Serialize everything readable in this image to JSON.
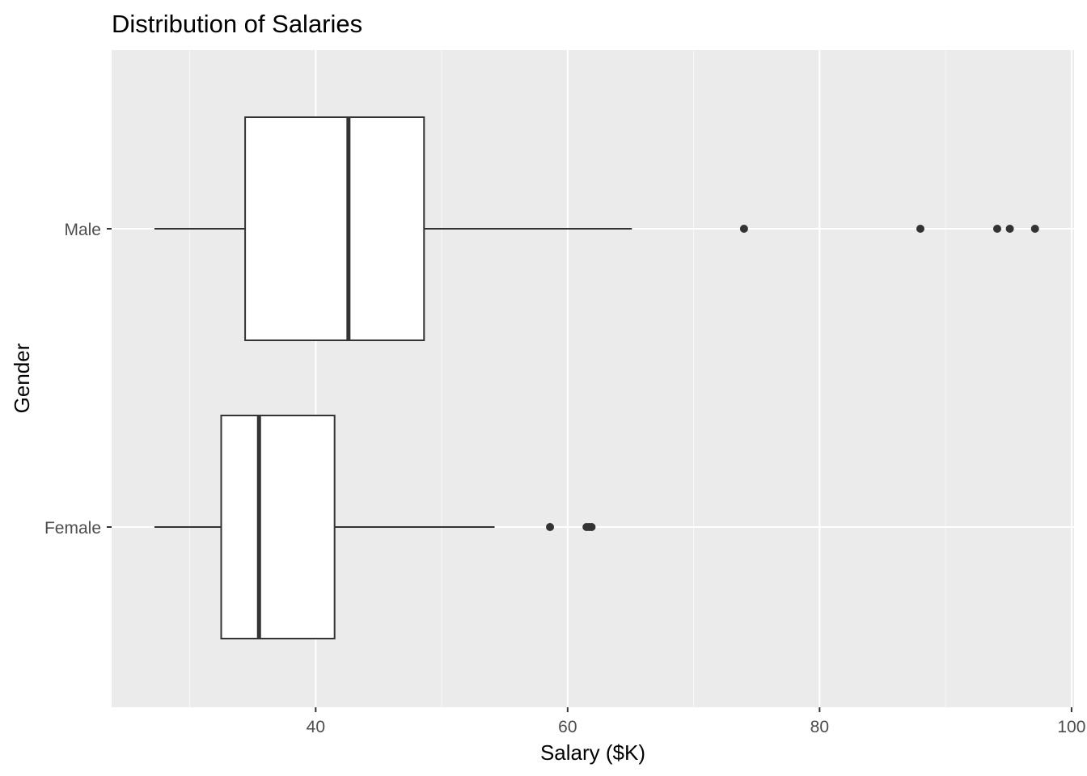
{
  "chart_data": {
    "type": "boxplot",
    "orientation": "horizontal",
    "title": "Distribution of Salaries",
    "xlabel": "Salary ($K)",
    "ylabel": "Gender",
    "xlim": [
      23.8,
      100.2
    ],
    "x_major_ticks": [
      40,
      60,
      80,
      100
    ],
    "x_minor_ticks": [
      30,
      50,
      70,
      90
    ],
    "categories": [
      "Male",
      "Female"
    ],
    "grid": true,
    "legend": "none",
    "colors": {
      "panel_background": "#ebebeb",
      "grid_major": "#ffffff",
      "grid_minor": "#f7f7f7",
      "box_fill": "#ffffff",
      "box_outline": "#333333",
      "outlier": "#333333",
      "tick_label": "#4d4d4d",
      "tick_mark": "#333333"
    },
    "series": [
      {
        "category": "Male",
        "whisker_low": 27.2,
        "q1": 34.4,
        "median": 42.6,
        "q3": 48.6,
        "whisker_high": 65.1,
        "outliers": [
          74.0,
          88.0,
          94.1,
          95.1,
          97.1
        ]
      },
      {
        "category": "Female",
        "whisker_low": 27.2,
        "q1": 32.5,
        "median": 35.5,
        "q3": 41.5,
        "whisker_high": 54.2,
        "outliers": [
          58.6,
          61.5,
          61.7,
          61.9
        ]
      }
    ]
  }
}
